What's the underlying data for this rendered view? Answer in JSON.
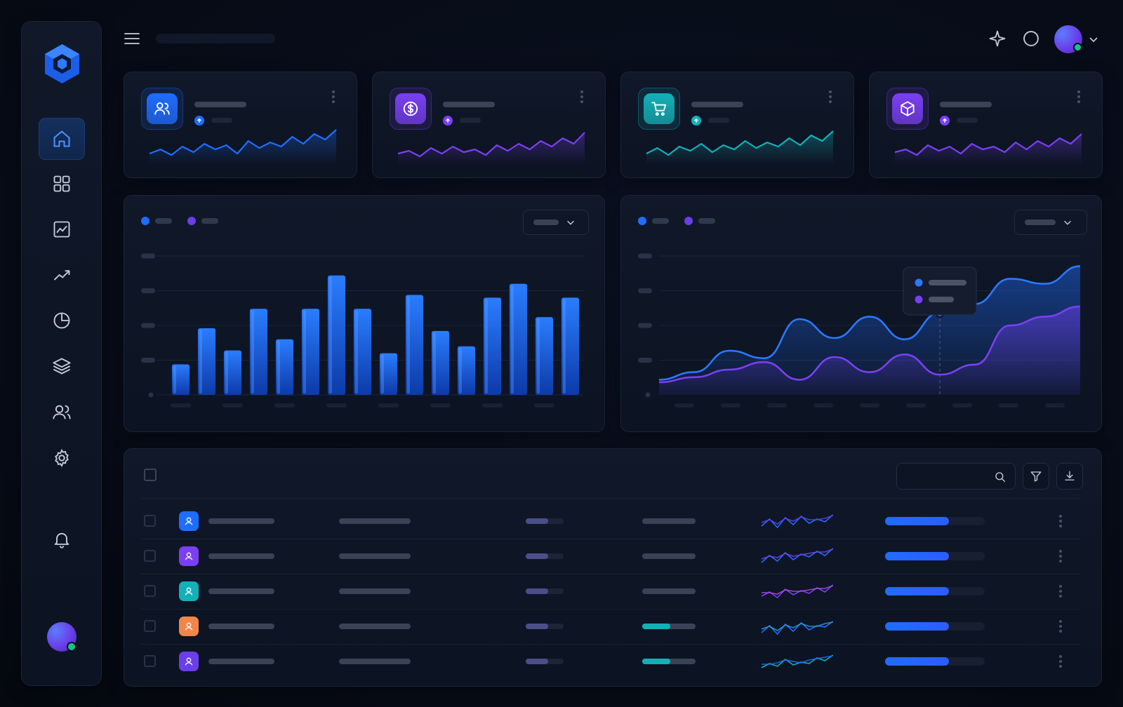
{
  "sidebar": {
    "logo_icon": "hexagon-logo-icon",
    "nav": [
      {
        "icon": "home-icon",
        "active": true
      },
      {
        "icon": "grid-icon",
        "active": false
      },
      {
        "icon": "chart-area-icon",
        "active": false
      },
      {
        "icon": "trend-line-icon",
        "active": false
      },
      {
        "icon": "pie-chart-icon",
        "active": false
      },
      {
        "icon": "layers-icon",
        "active": false
      },
      {
        "icon": "users-icon",
        "active": false
      },
      {
        "icon": "settings-gear-icon",
        "active": false
      }
    ],
    "bell_icon": "bell-icon",
    "user_status": "online"
  },
  "topbar": {
    "menu_icon": "hamburger-icon",
    "sparkle_icon": "sparkle-icon",
    "circle_icon": "circle-icon",
    "avatar_menu_icon": "chevron-down-icon"
  },
  "stat_cards": [
    {
      "icon": "users-icon",
      "accent": "#1f6dff",
      "trend": "up"
    },
    {
      "icon": "dollar-icon",
      "accent": "#7b3ff2",
      "trend": "up"
    },
    {
      "icon": "cart-icon",
      "accent": "#14b0b8",
      "trend": "up"
    },
    {
      "icon": "box-icon",
      "accent": "#7b3ff2",
      "trend": "up"
    }
  ],
  "colors": {
    "primary": "#1f6dff",
    "secondary": "#7b3ff2",
    "teal": "#14b0b8",
    "orange": "#f2864a",
    "panel": "#0f1626",
    "background": "#070b16"
  },
  "chart_data": [
    {
      "type": "bar",
      "legend": [
        {
          "color": "#1f6dff"
        },
        {
          "color": "#6a3ee8"
        }
      ],
      "values": [
        22,
        48,
        32,
        62,
        40,
        62,
        86,
        62,
        30,
        72,
        46,
        35,
        70,
        80,
        56,
        70
      ],
      "ylim": [
        0,
        100
      ],
      "grid": true
    },
    {
      "type": "area",
      "legend": [
        {
          "color": "#1f6dff"
        },
        {
          "color": "#6a3ee8"
        }
      ],
      "series": [
        {
          "values": [
            12,
            18,
            35,
            29,
            60,
            45,
            62,
            44,
            65,
            72,
            92,
            88,
            102
          ]
        },
        {
          "values": [
            10,
            14,
            20,
            26,
            12,
            30,
            18,
            32,
            16,
            24,
            55,
            62,
            70
          ]
        }
      ],
      "ylim": [
        0,
        110
      ],
      "tooltip_index": 8,
      "grid": true
    }
  ],
  "table": {
    "search_icon": "search-icon",
    "filter_icon": "filter-icon",
    "download_icon": "download-icon",
    "rows": [
      {
        "avatar_color": "#1f6dff",
        "progress": 0.64
      },
      {
        "avatar_color": "#7b3ff2",
        "progress": 0.64
      },
      {
        "avatar_color": "#14b0b8",
        "progress": 0.64
      },
      {
        "avatar_color": "#f2864a",
        "progress": 0.64
      },
      {
        "avatar_color": "#6a3ee8",
        "progress": 0.64
      }
    ]
  }
}
